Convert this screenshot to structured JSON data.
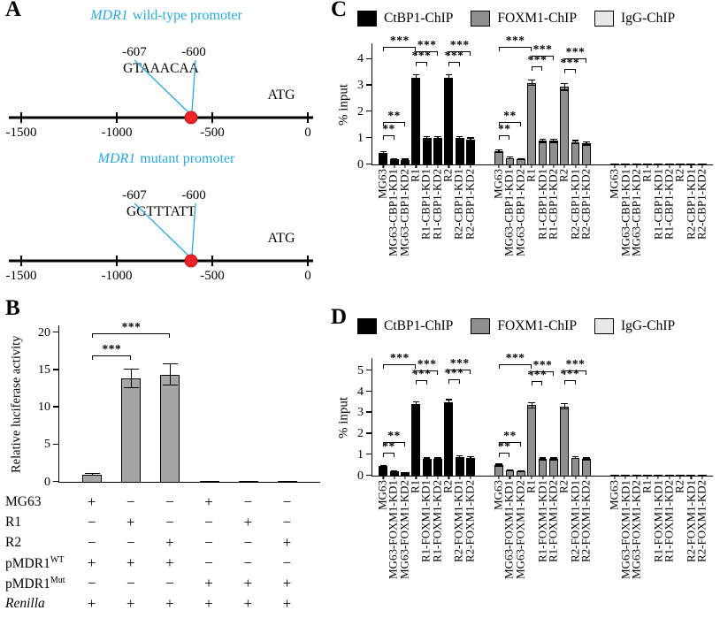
{
  "figure": {
    "panel_labels": [
      "A",
      "B",
      "C",
      "D"
    ],
    "colors": {
      "accent_cyan": "#2aa9dc",
      "dot_red": "#ee2227",
      "bar_gray": "#a6a6a6",
      "bar_black": "#000000",
      "bar_mid_gray": "#8f8f8f",
      "bar_light_gray": "#e8e8e8"
    },
    "panelA": {
      "wildtype": {
        "gene": "MDR1",
        "title": "wild-type promoter",
        "pos_left": "-607",
        "pos_right": "-600",
        "sequence": "GTAAACAA",
        "start_codon": "ATG",
        "axis_ticks": [
          "-1500",
          "-1000",
          "-500",
          "0"
        ]
      },
      "mutant": {
        "gene": "MDR1",
        "title": "mutant promoter",
        "pos_left": "-607",
        "pos_right": "-600",
        "sequence": "GGTTTATT",
        "start_codon": "ATG",
        "axis_ticks": [
          "-1500",
          "-1000",
          "-500",
          "0"
        ]
      }
    },
    "panelB": {
      "matrix_rows": [
        {
          "name": "MG63",
          "sup": "",
          "values": [
            "+",
            "−",
            "−",
            "+",
            "−",
            "−"
          ]
        },
        {
          "name": "R1",
          "sup": "",
          "values": [
            "−",
            "+",
            "−",
            "−",
            "+",
            "−"
          ]
        },
        {
          "name": "R2",
          "sup": "",
          "values": [
            "−",
            "−",
            "+",
            "−",
            "−",
            "+"
          ]
        },
        {
          "name": "pMDR1",
          "sup": "WT",
          "values": [
            "+",
            "+",
            "+",
            "−",
            "−",
            "−"
          ]
        },
        {
          "name": "pMDR1",
          "sup": "Mut",
          "values": [
            "−",
            "−",
            "−",
            "+",
            "+",
            "+"
          ]
        },
        {
          "name": "Renilla",
          "sup": "",
          "values": [
            "+",
            "+",
            "+",
            "+",
            "+",
            "+"
          ]
        }
      ]
    }
  },
  "chart_data": [
    {
      "id": "B",
      "type": "bar",
      "ylabel": "Relative luciferase activity",
      "yticks": [
        0,
        5,
        10,
        15,
        20
      ],
      "ylim": [
        0,
        21
      ],
      "series": [
        {
          "name": "Relative luciferase activity",
          "color": "#a6a6a6",
          "values": [
            1.0,
            13.9,
            14.4,
            0.1,
            0.1,
            0.1
          ],
          "errors": [
            0.2,
            1.3,
            1.5,
            0,
            0,
            0
          ]
        }
      ],
      "significance": [
        {
          "series": 0,
          "from": 0,
          "to": 1,
          "label": "***",
          "height": 16.4
        },
        {
          "series": 0,
          "from": 0,
          "to": 2,
          "label": "***",
          "height": 19.4
        }
      ],
      "layout": {
        "group_gap": 0,
        "edge_pad": 0.35,
        "bar_frac": 0.5
      }
    },
    {
      "id": "C",
      "type": "bar",
      "ylabel": "% input",
      "yticks": [
        0,
        1,
        2,
        3,
        4
      ],
      "ylim": [
        0,
        4.6
      ],
      "categories": [
        "MG63",
        "MG63-CBP1-KD1",
        "MG63-CBP1-KD2",
        "R1",
        "R1-CBP1-KD1",
        "R1-CBP1-KD2",
        "R2",
        "R2-CBP1-KD1",
        "R2-CBP1-KD2"
      ],
      "series": [
        {
          "name": "CtBP1-ChIP",
          "color": "#000000",
          "values": [
            0.45,
            0.2,
            0.18,
            3.3,
            1.0,
            1.0,
            3.3,
            1.0,
            0.95
          ],
          "errors": [
            0.07,
            0.04,
            0.04,
            0.12,
            0.08,
            0.08,
            0.12,
            0.08,
            0.08
          ]
        },
        {
          "name": "FOXM1-ChIP",
          "color": "#8f8f8f",
          "values": [
            0.5,
            0.25,
            0.2,
            3.1,
            0.9,
            0.9,
            2.95,
            0.85,
            0.8
          ],
          "errors": [
            0.07,
            0.05,
            0.04,
            0.12,
            0.08,
            0.08,
            0.15,
            0.08,
            0.08
          ]
        },
        {
          "name": "IgG-ChIP",
          "color": "#e8e8e8",
          "values": [
            0.03,
            0.03,
            0.03,
            0.03,
            0.03,
            0.03,
            0.03,
            0.03,
            0.03
          ],
          "errors": [
            0,
            0,
            0,
            0,
            0,
            0,
            0,
            0,
            0
          ]
        }
      ],
      "significance": [
        {
          "series": 0,
          "from": 0,
          "to": 1,
          "label": "**",
          "height": 0.95
        },
        {
          "series": 0,
          "from": 0,
          "to": 2,
          "label": "**",
          "height": 1.45
        },
        {
          "series": 0,
          "from": 0,
          "to": 3,
          "label": "***",
          "height": 4.3
        },
        {
          "series": 0,
          "from": 3,
          "to": 4,
          "label": "***",
          "height": 3.72
        },
        {
          "series": 0,
          "from": 3,
          "to": 5,
          "label": "***",
          "height": 4.12
        },
        {
          "series": 0,
          "from": 6,
          "to": 7,
          "label": "***",
          "height": 3.72
        },
        {
          "series": 0,
          "from": 6,
          "to": 8,
          "label": "***",
          "height": 4.12
        },
        {
          "series": 1,
          "from": 0,
          "to": 1,
          "label": "**",
          "height": 0.95
        },
        {
          "series": 1,
          "from": 0,
          "to": 2,
          "label": "**",
          "height": 1.45
        },
        {
          "series": 1,
          "from": 0,
          "to": 3,
          "label": "***",
          "height": 4.3
        },
        {
          "series": 1,
          "from": 3,
          "to": 4,
          "label": "***",
          "height": 3.55
        },
        {
          "series": 1,
          "from": 3,
          "to": 5,
          "label": "***",
          "height": 3.95
        },
        {
          "series": 1,
          "from": 6,
          "to": 7,
          "label": "***",
          "height": 3.45
        },
        {
          "series": 1,
          "from": 6,
          "to": 8,
          "label": "***",
          "height": 3.85
        }
      ],
      "layout": {
        "group_gap": 1.6,
        "edge_pad": 0.5,
        "bar_frac": 0.8
      }
    },
    {
      "id": "D",
      "type": "bar",
      "ylabel": "% input",
      "yticks": [
        0,
        1,
        2,
        3,
        4,
        5
      ],
      "ylim": [
        0,
        5.6
      ],
      "categories": [
        "MG63",
        "MG63-FOXM1-KD1",
        "MG63-FOXM1-KD2",
        "R1",
        "R1-FOXM1-KD1",
        "R1-FOXM1-KD2",
        "R2",
        "R2-FOXM1-KD1",
        "R2-FOXM1-KD2"
      ],
      "series": [
        {
          "name": "CtBP1-ChIP",
          "color": "#000000",
          "values": [
            0.45,
            0.2,
            0.15,
            3.4,
            0.8,
            0.8,
            3.5,
            0.9,
            0.85
          ],
          "errors": [
            0.06,
            0.04,
            0.03,
            0.15,
            0.07,
            0.07,
            0.15,
            0.08,
            0.07
          ]
        },
        {
          "name": "FOXM1-ChIP",
          "color": "#8f8f8f",
          "values": [
            0.5,
            0.25,
            0.2,
            3.35,
            0.8,
            0.8,
            3.3,
            0.85,
            0.8
          ],
          "errors": [
            0.07,
            0.05,
            0.04,
            0.15,
            0.07,
            0.07,
            0.15,
            0.07,
            0.07
          ]
        },
        {
          "name": "IgG-ChIP",
          "color": "#e8e8e8",
          "values": [
            0.03,
            0.03,
            0.03,
            0.03,
            0.03,
            0.03,
            0.03,
            0.03,
            0.03
          ],
          "errors": [
            0,
            0,
            0,
            0,
            0,
            0,
            0,
            0,
            0
          ]
        }
      ],
      "significance": [
        {
          "series": 0,
          "from": 0,
          "to": 1,
          "label": "**",
          "height": 0.9
        },
        {
          "series": 0,
          "from": 0,
          "to": 2,
          "label": "**",
          "height": 1.4
        },
        {
          "series": 0,
          "from": 0,
          "to": 3,
          "label": "***",
          "height": 5.1
        },
        {
          "series": 0,
          "from": 3,
          "to": 4,
          "label": "***",
          "height": 4.35
        },
        {
          "series": 0,
          "from": 3,
          "to": 5,
          "label": "***",
          "height": 4.8
        },
        {
          "series": 0,
          "from": 6,
          "to": 7,
          "label": "***",
          "height": 4.4
        },
        {
          "series": 0,
          "from": 6,
          "to": 8,
          "label": "***",
          "height": 4.85
        },
        {
          "series": 1,
          "from": 0,
          "to": 1,
          "label": "**",
          "height": 0.9
        },
        {
          "series": 1,
          "from": 0,
          "to": 2,
          "label": "**",
          "height": 1.4
        },
        {
          "series": 1,
          "from": 0,
          "to": 3,
          "label": "***",
          "height": 5.1
        },
        {
          "series": 1,
          "from": 3,
          "to": 4,
          "label": "***",
          "height": 4.3
        },
        {
          "series": 1,
          "from": 3,
          "to": 5,
          "label": "***",
          "height": 4.75
        },
        {
          "series": 1,
          "from": 6,
          "to": 7,
          "label": "***",
          "height": 4.35
        },
        {
          "series": 1,
          "from": 6,
          "to": 8,
          "label": "***",
          "height": 4.8
        }
      ],
      "layout": {
        "group_gap": 1.6,
        "edge_pad": 0.5,
        "bar_frac": 0.8
      }
    }
  ]
}
